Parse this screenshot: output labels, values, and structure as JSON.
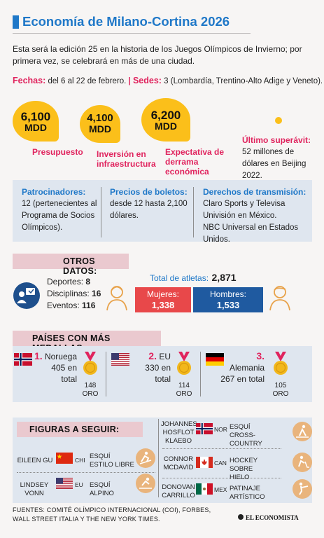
{
  "header": {
    "title": "Economía de Milano-Cortina 2026",
    "intro": "Esta será la edición 25 en la historia de los Juegos Olímpicos de Invierno; por primera vez, se celebrará en más de una ciudad.",
    "fechas_label": "Fechas:",
    "fechas_value": "del 6 al 22 de febrero.",
    "sedes_label": "Sedes:",
    "sedes_value": "3 (Lombardía, Trentino-Alto Adige y Veneto)."
  },
  "figures_money": [
    {
      "amount": "6,100",
      "unit": "MDD",
      "caption": "Presupuesto"
    },
    {
      "amount": "4,100",
      "unit": "MDD",
      "caption": "Inversión en infraestructura"
    },
    {
      "amount": "6,200",
      "unit": "MDD",
      "caption": "Expectativa de derrama económica"
    }
  ],
  "superavit": {
    "label": "Último superávit:",
    "value": "52 millones de dólares en Beijing 2022."
  },
  "info": {
    "patrocinadores_label": "Patrocinadores:",
    "patrocinadores_value": "12 (pertenecientes al Programa de Socios Olímpicos).",
    "precios_label": "Precios de boletos:",
    "precios_value": "desde 12 hasta 2,100 dólares.",
    "derechos_label": "Derechos de transmisión:",
    "derechos_value": "Claro Sports y Televisa Univisión en México.",
    "derechos_value2": "NBC Universal en Estados Unidos."
  },
  "otros": {
    "heading": "OTROS DATOS:",
    "deportes_label": "Deportes:",
    "deportes_value": "8",
    "disciplinas_label": "Disciplinas:",
    "disciplinas_value": "16",
    "eventos_label": "Eventos:",
    "eventos_value": "116",
    "total_label": "Total de atletas:",
    "total_value": "2,871",
    "mujeres_label": "Mujeres:",
    "mujeres_value": "1,338",
    "hombres_label": "Hombres:",
    "hombres_value": "1,533"
  },
  "medallas": {
    "heading": "PAÍSES CON MÁS MEDALLAS:",
    "countries": [
      {
        "rank": "1.",
        "name": "Noruega",
        "total": "405 en total",
        "gold": "148",
        "gold_label": "ORO"
      },
      {
        "rank": "2.",
        "name": "EU",
        "total": "330 en total",
        "gold": "114",
        "gold_label": "ORO"
      },
      {
        "rank": "3.",
        "name": "Alemania",
        "total": "267 en total",
        "gold": "105",
        "gold_label": "ORO"
      }
    ]
  },
  "figuras": {
    "heading": "FIGURAS A SEGUIR:",
    "left": [
      {
        "name": "EILEEN GU",
        "code": "CHI",
        "sport": "ESQUÍ ESTILO LIBRE"
      },
      {
        "name": "LINDSEY VONN",
        "code": "EU",
        "sport": "ESQUÍ ALPINO"
      }
    ],
    "right": [
      {
        "name": "JOHANNES HOSFLOT KLAEBO",
        "code": "NOR",
        "sport": "ESQUÍ CROSS-COUNTRY"
      },
      {
        "name": "CONNOR MCDAVID",
        "code": "CAN",
        "sport": "HOCKEY SOBRE HIELO"
      },
      {
        "name": "DONOVAN CARRILLO",
        "code": "MEX",
        "sport": "PATINAJE ARTÍSTICO"
      }
    ]
  },
  "footer": {
    "sources": "FUENTES: COMITÉ OLÍMPICO INTERNACIONAL (COI), FORBES, WALL STREET ITALIA Y THE NEW YORK TIMES.",
    "brand": "EL ECONOMISTA"
  },
  "colors": {
    "accent_blue": "#1f78c8",
    "accent_pink": "#e0245e",
    "gold": "#fbbf1a",
    "female_bar": "#e8484a",
    "male_bar": "#1f5aa0"
  }
}
